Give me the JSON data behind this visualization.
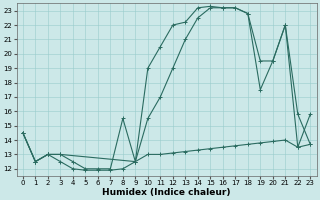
{
  "title": "",
  "xlabel": "Humidex (Indice chaleur)",
  "xlim": [
    -0.5,
    23.5
  ],
  "ylim": [
    11.5,
    23.5
  ],
  "xticks": [
    0,
    1,
    2,
    3,
    4,
    5,
    6,
    7,
    8,
    9,
    10,
    11,
    12,
    13,
    14,
    15,
    16,
    17,
    18,
    19,
    20,
    21,
    22,
    23
  ],
  "yticks": [
    12,
    13,
    14,
    15,
    16,
    17,
    18,
    19,
    20,
    21,
    22,
    23
  ],
  "background_color": "#cce8e8",
  "grid_color": "#99cccc",
  "line_color": "#2a6b60",
  "curve1_x": [
    0,
    1,
    2,
    3,
    9,
    10,
    11,
    12,
    13,
    14,
    15,
    16,
    17,
    18,
    19,
    20,
    21,
    22,
    23
  ],
  "curve1_y": [
    14.5,
    12.5,
    13.0,
    13.0,
    12.5,
    15.5,
    17.0,
    19.0,
    21.0,
    22.5,
    23.2,
    23.2,
    23.2,
    22.8,
    19.5,
    19.5,
    22.0,
    15.8,
    13.7
  ],
  "curve2_x": [
    0,
    1,
    2,
    3,
    4,
    5,
    6,
    7,
    8,
    9,
    10,
    11,
    12,
    13,
    14,
    15,
    16,
    17,
    18,
    19,
    20,
    21,
    22,
    23
  ],
  "curve2_y": [
    14.5,
    12.5,
    13.0,
    12.5,
    12.0,
    11.9,
    11.9,
    11.9,
    12.0,
    12.5,
    13.0,
    13.0,
    13.1,
    13.2,
    13.3,
    13.4,
    13.5,
    13.6,
    13.7,
    13.8,
    13.9,
    14.0,
    13.5,
    13.7
  ],
  "curve3_x": [
    0,
    1,
    2,
    3,
    4,
    5,
    6,
    7,
    8,
    9,
    10,
    11,
    12,
    13,
    14,
    15,
    16,
    17,
    18,
    19,
    20,
    21,
    22,
    23
  ],
  "curve3_y": [
    14.5,
    12.5,
    13.0,
    13.0,
    12.5,
    12.0,
    12.0,
    12.0,
    15.5,
    12.5,
    19.0,
    20.5,
    22.0,
    22.2,
    23.2,
    23.3,
    23.2,
    23.2,
    22.8,
    17.5,
    19.5,
    22.0,
    13.5,
    15.8
  ],
  "tick_fontsize": 5.0,
  "xlabel_fontsize": 6.5
}
